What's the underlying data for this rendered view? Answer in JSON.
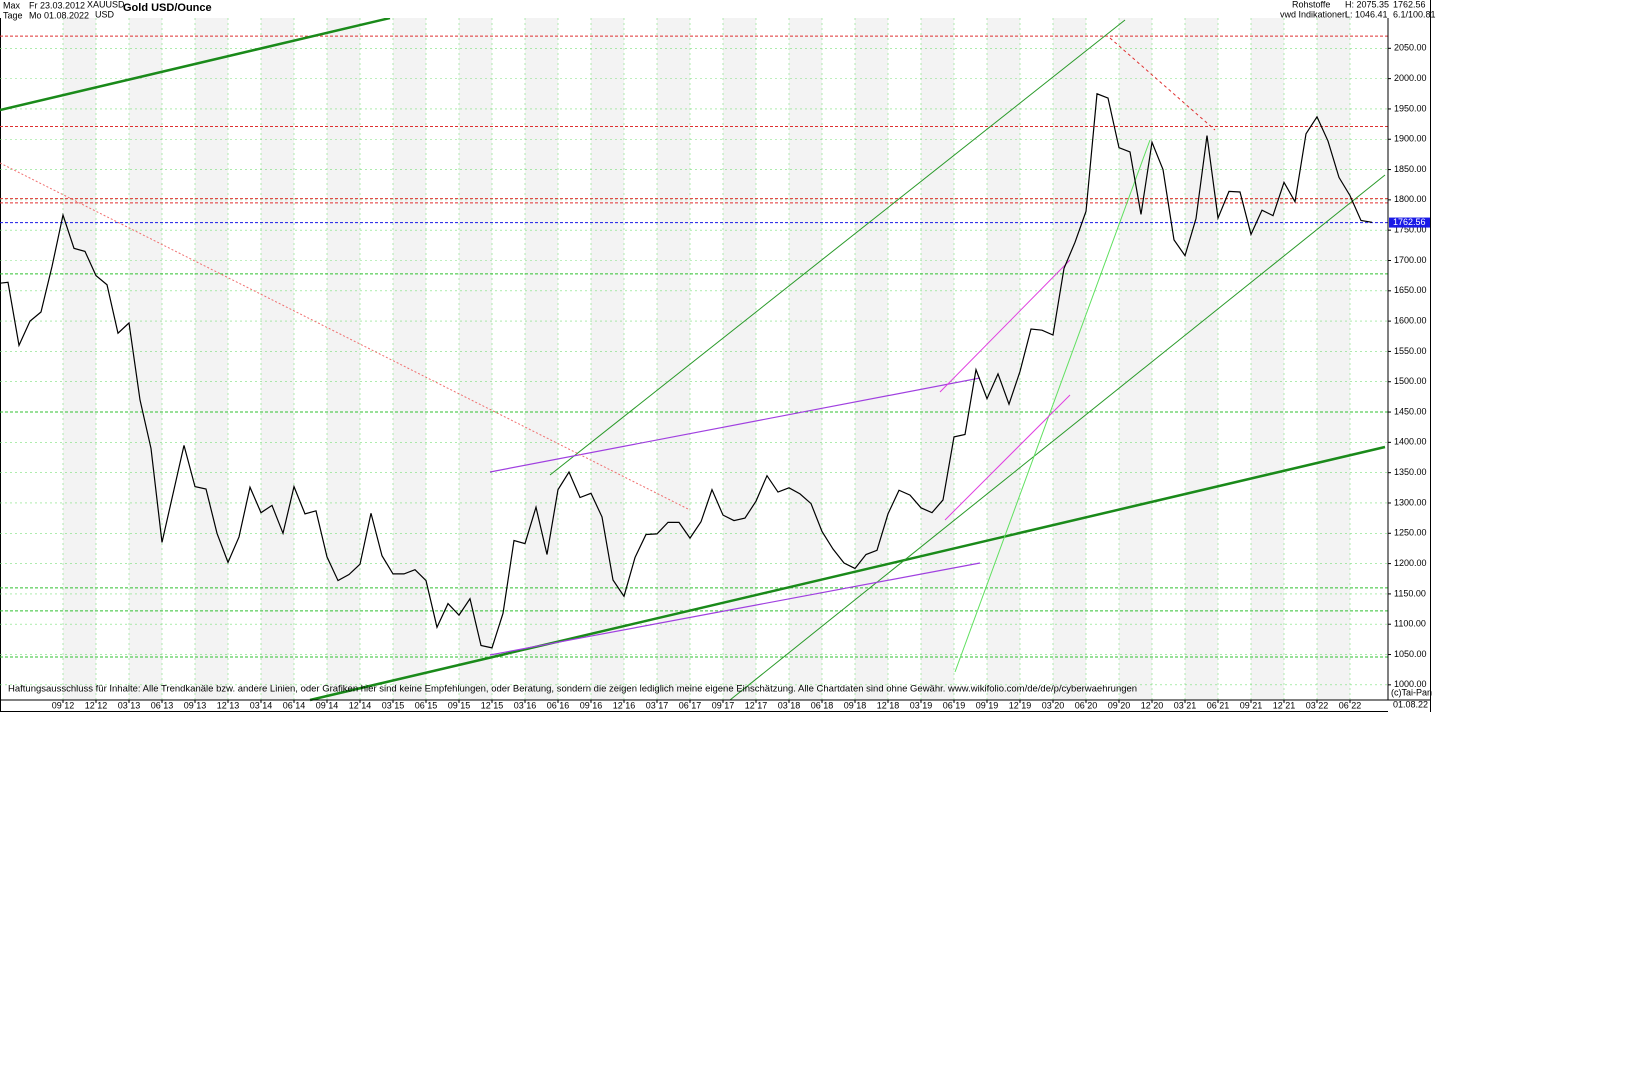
{
  "header": {
    "range": "Max",
    "start": "Fr 23.03.2012",
    "symbol": "XAUUSD",
    "title": "Gold USD/Ounce",
    "period": "Tage",
    "end": "Mo 01.08.2022",
    "currency": "USD",
    "category": "Rohstoffe",
    "high": "H: 2075.35",
    "price": "1762.56",
    "source": "vwd Indikationen",
    "low": "L: 1046.41",
    "version": "6.1/100.81"
  },
  "footer": {
    "disclaimer": "Haftungsausschluss für Inhalte: Alle Trendkanäle bzw. andere Linien, oder Grafiken hier sind keine Empfehlungen, oder Beratung, sondern die zeigen lediglich meine eigene Einschätzung. Alle Chartdaten sind ohne Gewähr.  www.wikifolio.com/de/de/p/cyberwaehrungen",
    "copyright": "(c)Tai-Pan",
    "date": "01.08.22"
  },
  "chart_data": {
    "type": "line",
    "title": "Gold USD/Ounce",
    "x": [
      null,
      null,
      null,
      null,
      null,
      null,
      "09 12",
      null,
      null,
      "12 12",
      null,
      null,
      "03 13",
      null,
      null,
      "06 13",
      null,
      null,
      "09 13",
      null,
      null,
      "12 13",
      null,
      null,
      "03 14",
      null,
      null,
      "06 14",
      null,
      null,
      "09 14",
      null,
      null,
      "12 14",
      null,
      null,
      "03 15",
      null,
      null,
      "06 15",
      null,
      null,
      "09 15",
      null,
      null,
      "12 15",
      null,
      null,
      "03 16",
      null,
      null,
      "06 16",
      null,
      null,
      "09 16",
      null,
      null,
      "12 16",
      null,
      null,
      "03 17",
      null,
      null,
      "06 17",
      null,
      null,
      "09 17",
      null,
      null,
      "12 17",
      null,
      null,
      "03 18",
      null,
      null,
      "06 18",
      null,
      null,
      "09 18",
      null,
      null,
      "12 18",
      null,
      null,
      "03 19",
      null,
      null,
      "06 19",
      null,
      null,
      "09 19",
      null,
      null,
      "12 19",
      null,
      null,
      "03 20",
      null,
      null,
      "06 20",
      null,
      null,
      "09 20",
      null,
      null,
      "12 20",
      null,
      null,
      "03 21",
      null,
      null,
      "06 21",
      null,
      null,
      "09 21",
      null,
      null,
      "12 21",
      null,
      null,
      "03 22",
      null,
      null,
      "06 22",
      null,
      null
    ],
    "series": [
      {
        "name": "XAUUSD",
        "color": "#000000",
        "values": [
          1662,
          1664,
          1560,
          1600,
          1615,
          1690,
          1775,
          1720,
          1715,
          1675,
          1660,
          1580,
          1597,
          1470,
          1390,
          1235,
          1315,
          1395,
          1327,
          1323,
          1250,
          1202,
          1244,
          1326,
          1284,
          1296,
          1250,
          1327,
          1282,
          1287,
          1211,
          1172,
          1182,
          1199,
          1283,
          1213,
          1183,
          1183,
          1190,
          1172,
          1095,
          1134,
          1115,
          1142,
          1065,
          1061,
          1118,
          1238,
          1233,
          1293,
          1215,
          1322,
          1351,
          1309,
          1316,
          1277,
          1173,
          1146,
          1210,
          1248,
          1249,
          1268,
          1268,
          1242,
          1269,
          1322,
          1280,
          1271,
          1275,
          1303,
          1345,
          1318,
          1325,
          1315,
          1299,
          1253,
          1224,
          1201,
          1192,
          1215,
          1222,
          1282,
          1321,
          1313,
          1292,
          1284,
          1305,
          1409,
          1413,
          1520,
          1472,
          1513,
          1463,
          1517,
          1587,
          1585,
          1577,
          1687,
          1730,
          1781,
          1975,
          1968,
          1886,
          1879,
          1776,
          1895,
          1850,
          1734,
          1708,
          1769,
          1906,
          1770,
          1814,
          1813,
          1743,
          1783,
          1774,
          1829,
          1797,
          1909,
          1937,
          1897,
          1837,
          1807,
          1766,
          1763
        ]
      }
    ],
    "ylim": [
      975,
      2100
    ],
    "yticks": [
      {
        "value": 1000,
        "label": "1000.00"
      },
      {
        "value": 1050,
        "label": "1050.00"
      },
      {
        "value": 1100,
        "label": "1100.00"
      },
      {
        "value": 1150,
        "label": "1150.00"
      },
      {
        "value": 1200,
        "label": "1200.00"
      },
      {
        "value": 1250,
        "label": "1250.00"
      },
      {
        "value": 1300,
        "label": "1300.00"
      },
      {
        "value": 1350,
        "label": "1350.00"
      },
      {
        "value": 1400,
        "label": "1400.00"
      },
      {
        "value": 1450,
        "label": "1450.00"
      },
      {
        "value": 1500,
        "label": "1500.00"
      },
      {
        "value": 1550,
        "label": "1550.00"
      },
      {
        "value": 1600,
        "label": "1600.00"
      },
      {
        "value": 1650,
        "label": "1650.00"
      },
      {
        "value": 1700,
        "label": "1700.00"
      },
      {
        "value": 1750,
        "label": "1750.00"
      },
      {
        "value": 1800,
        "label": "1800.00"
      },
      {
        "value": 1850,
        "label": "1850.00"
      },
      {
        "value": 1900,
        "label": "1900.00"
      },
      {
        "value": 1950,
        "label": "1950.00"
      },
      {
        "value": 2000,
        "label": "2000.00"
      },
      {
        "value": 2050,
        "label": "2050.00"
      }
    ],
    "last_price": {
      "value": 1762.56,
      "label": "1762.56",
      "color": "#1a1ae6"
    },
    "levels": [
      {
        "value": 2070,
        "color": "#e03030"
      },
      {
        "value": 1921,
        "color": "#e03030"
      },
      {
        "value": 1802,
        "color": "#e03030"
      },
      {
        "value": 1795,
        "color": "#e03030"
      },
      {
        "value": 1678,
        "color": "#30c030"
      },
      {
        "value": 1450,
        "color": "#30c030"
      },
      {
        "value": 1160,
        "color": "#30c030"
      },
      {
        "value": 1122,
        "color": "#30c030"
      },
      {
        "value": 1046,
        "color": "#30c030"
      }
    ],
    "grid": true
  }
}
